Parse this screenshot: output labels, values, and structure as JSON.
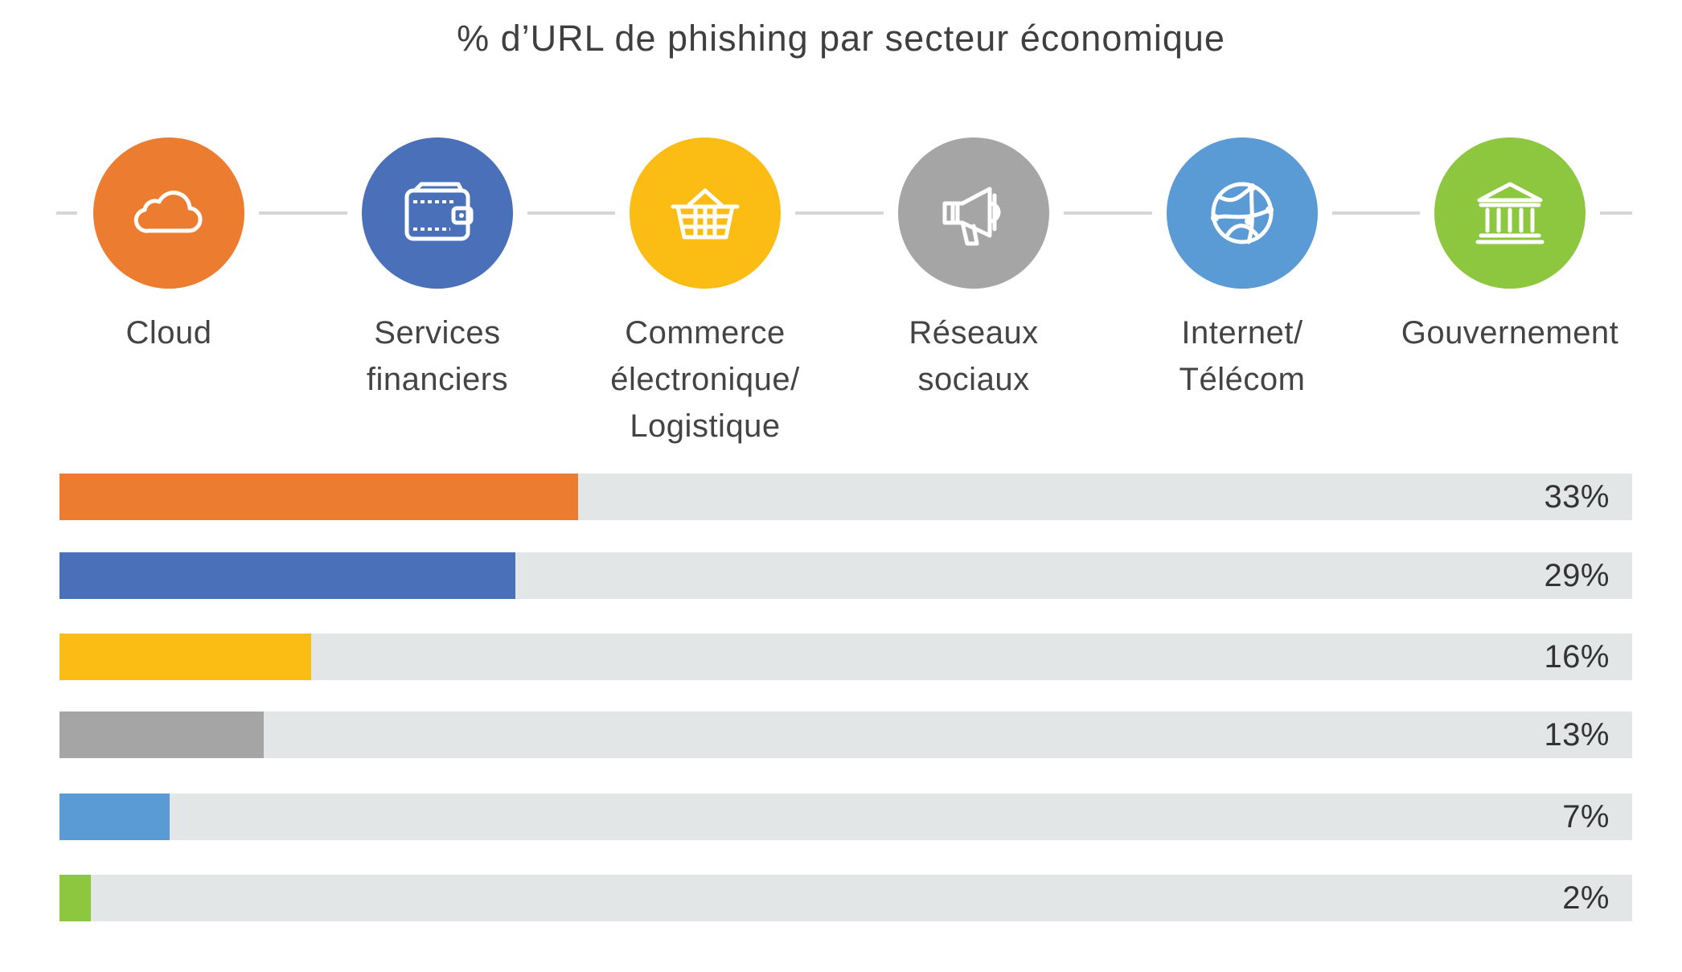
{
  "chart_data": {
    "type": "bar",
    "orientation": "horizontal",
    "title": "% d’URL de phishing par secteur économique",
    "categories": [
      "Cloud",
      "Services financiers",
      "Commerce électronique/ Logistique",
      "Réseaux sociaux",
      "Internet/ Télécom",
      "Gouvernement"
    ],
    "values": [
      33,
      29,
      16,
      13,
      7,
      2
    ],
    "value_labels": [
      "33%",
      "29%",
      "16%",
      "13%",
      "7%",
      "2%"
    ],
    "xlim": [
      0,
      100
    ],
    "grid": false,
    "legend": "icons-above"
  },
  "sectors": [
    {
      "label_lines": [
        "Cloud"
      ],
      "icon": "cloud-icon",
      "color": "#ec7c30"
    },
    {
      "label_lines": [
        "Services",
        "financiers"
      ],
      "icon": "wallet-icon",
      "color": "#4a70b9"
    },
    {
      "label_lines": [
        "Commerce",
        "électronique/",
        "Logistique"
      ],
      "icon": "basket-icon",
      "color": "#fbbd13"
    },
    {
      "label_lines": [
        "Réseaux",
        "sociaux"
      ],
      "icon": "megaphone-icon",
      "color": "#a5a5a5"
    },
    {
      "label_lines": [
        "Internet/",
        "Télécom"
      ],
      "icon": "globe-icon",
      "color": "#5b9bd5"
    },
    {
      "label_lines": [
        "Gouvernement"
      ],
      "icon": "government-building-icon",
      "color": "#8dc63f"
    }
  ],
  "track_color": "#e3e6e6"
}
